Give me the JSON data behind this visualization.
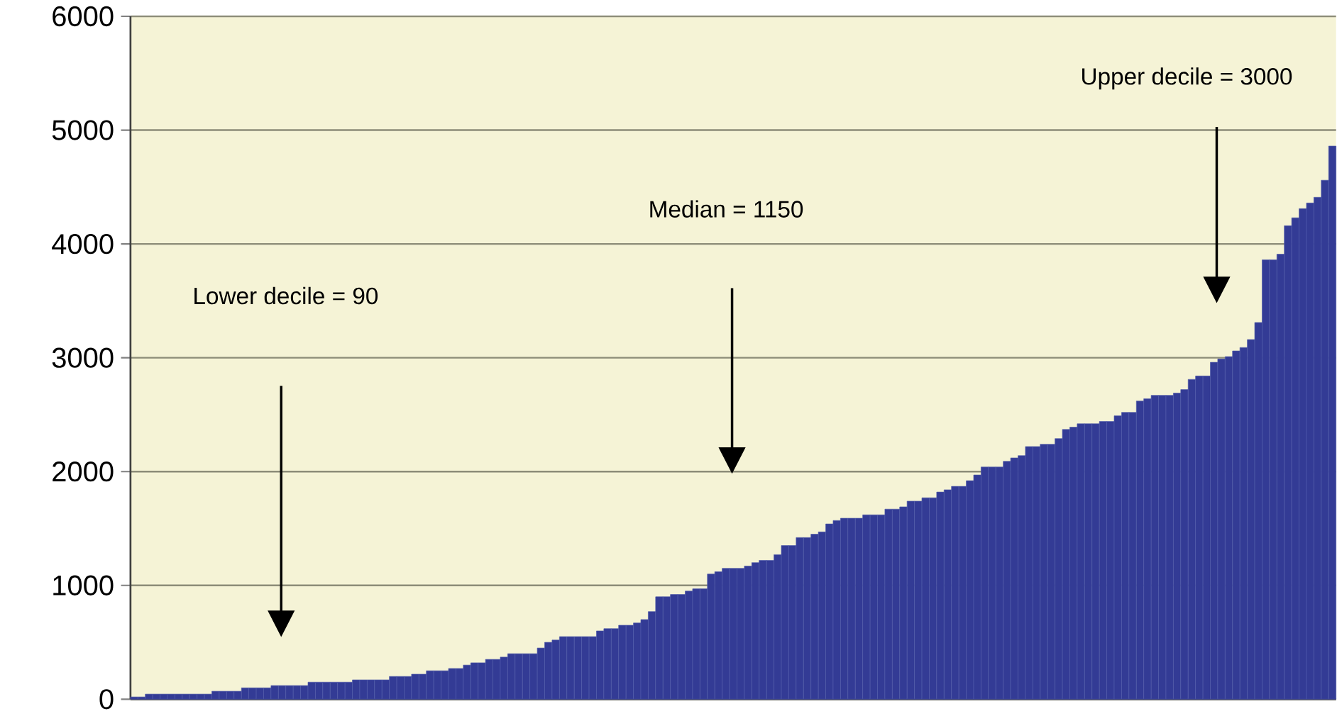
{
  "chart_data": {
    "type": "bar",
    "color": "#333b95",
    "grid": "y",
    "ylim": [
      0,
      6000
    ],
    "yticks": [
      0,
      1000,
      2000,
      3000,
      4000,
      5000,
      6000
    ],
    "categories": [
      null,
      null,
      null,
      null,
      null,
      null,
      null,
      null,
      null,
      null,
      null,
      null,
      null,
      null,
      null,
      null,
      null,
      null,
      null,
      null,
      null,
      null,
      null,
      null,
      null,
      null,
      null,
      null,
      null,
      null,
      null,
      null,
      null,
      null,
      null,
      null,
      null,
      null,
      null,
      null,
      null,
      null,
      null,
      null,
      null,
      null,
      null,
      null,
      null,
      null,
      null,
      null,
      null,
      null,
      null,
      null,
      null,
      null,
      null,
      null,
      null,
      null,
      null,
      null,
      null,
      null,
      null,
      null,
      null,
      null,
      null,
      null,
      null,
      null,
      null,
      null,
      null,
      null,
      null,
      null,
      null,
      null,
      null,
      null,
      null,
      null,
      null,
      null,
      null,
      null,
      null,
      null,
      null,
      null,
      null,
      null,
      null,
      null,
      null,
      null,
      null,
      null,
      null,
      null,
      null,
      null,
      null,
      null,
      null,
      null,
      null,
      null,
      null,
      null,
      null,
      null,
      null,
      null,
      null,
      null,
      null,
      null,
      null,
      null,
      null,
      null,
      null,
      null,
      null,
      null,
      null,
      null,
      null,
      null,
      null,
      null,
      null,
      null,
      null,
      null,
      null,
      null,
      null,
      null,
      null,
      null,
      null,
      null,
      null,
      null,
      null,
      null,
      null,
      null,
      null,
      null,
      null,
      null,
      null,
      null,
      null,
      null,
      null
    ],
    "values": [
      20,
      20,
      45,
      45,
      45,
      45,
      45,
      45,
      45,
      45,
      45,
      70,
      70,
      70,
      70,
      100,
      100,
      100,
      100,
      120,
      120,
      120,
      120,
      120,
      150,
      150,
      150,
      150,
      150,
      150,
      170,
      170,
      170,
      170,
      170,
      200,
      200,
      200,
      220,
      220,
      250,
      250,
      250,
      270,
      270,
      300,
      320,
      320,
      350,
      350,
      370,
      400,
      400,
      400,
      400,
      450,
      500,
      520,
      550,
      550,
      550,
      550,
      550,
      600,
      620,
      620,
      650,
      650,
      670,
      700,
      770,
      900,
      900,
      920,
      920,
      950,
      970,
      970,
      1100,
      1120,
      1150,
      1150,
      1150,
      1170,
      1200,
      1220,
      1220,
      1270,
      1350,
      1350,
      1420,
      1420,
      1450,
      1470,
      1540,
      1570,
      1590,
      1590,
      1590,
      1620,
      1620,
      1620,
      1670,
      1670,
      1690,
      1740,
      1740,
      1770,
      1770,
      1820,
      1840,
      1870,
      1870,
      1920,
      1970,
      2040,
      2040,
      2040,
      2090,
      2120,
      2140,
      2220,
      2220,
      2240,
      2240,
      2290,
      2370,
      2390,
      2420,
      2420,
      2420,
      2440,
      2440,
      2490,
      2520,
      2520,
      2620,
      2640,
      2670,
      2670,
      2670,
      2690,
      2720,
      2810,
      2840,
      2840,
      2960,
      2990,
      3010,
      3060,
      3090,
      3160,
      3310,
      3860,
      3860,
      3910,
      4160,
      4230,
      4310,
      4360,
      4410,
      4560,
      4860
    ],
    "annotations": [
      "Lower decile = 90",
      "Median = 1150",
      "Upper decile = 3000"
    ]
  }
}
